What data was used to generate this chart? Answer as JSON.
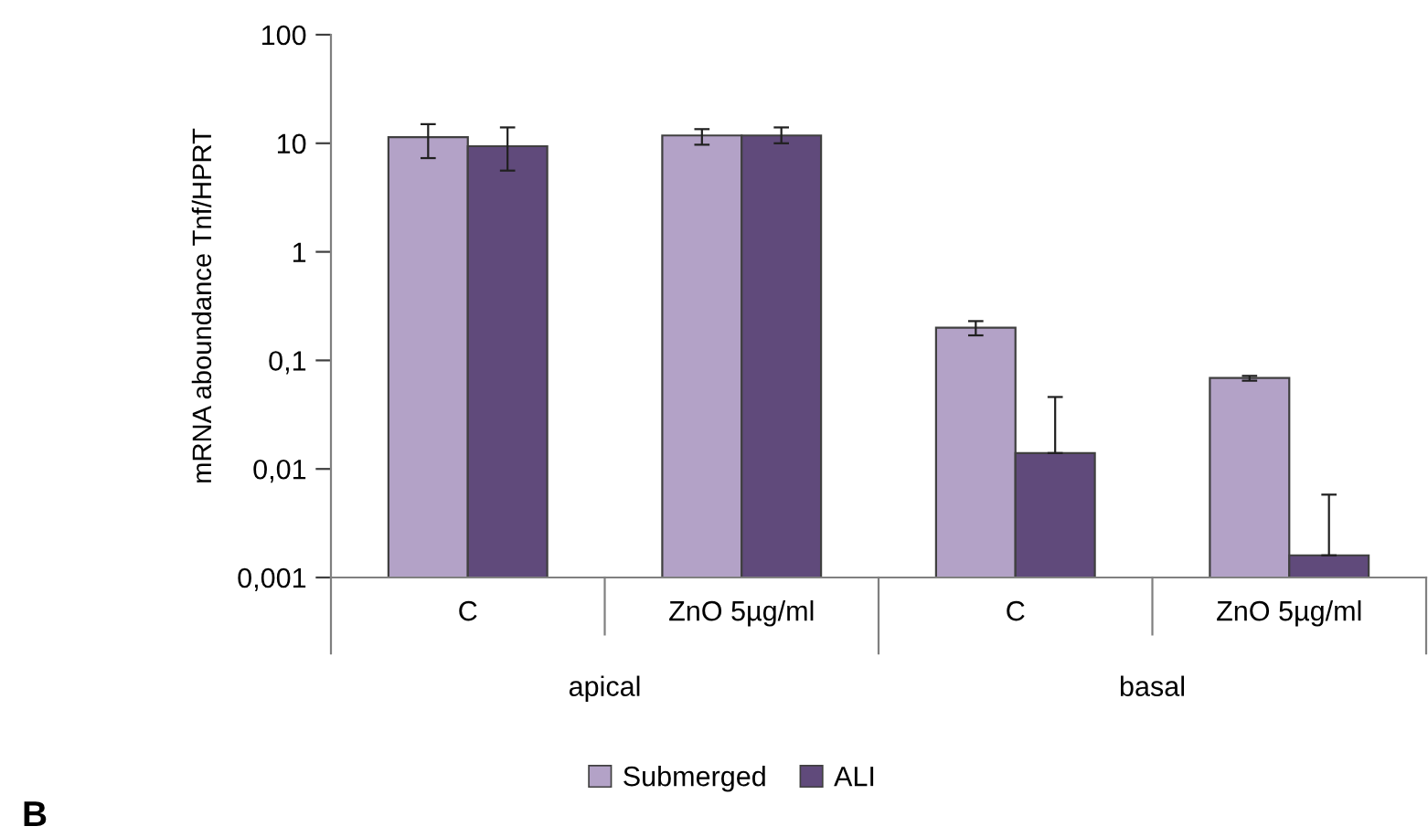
{
  "chart_data": {
    "type": "bar",
    "ylabel": "mRNA aboundance Tnf/HPRT",
    "categories": [
      "C",
      "ZnO 5µg/ml",
      "C",
      "ZnO 5µg/ml"
    ],
    "series": [
      {
        "name": "Submerged",
        "color": "#b3a2c7",
        "values": [
          11.4,
          11.8,
          0.2,
          0.069
        ],
        "errors": [
          [
            7.3,
            15
          ],
          [
            9.7,
            13.5
          ],
          [
            0.17,
            0.23
          ],
          [
            0.065,
            0.072
          ]
        ]
      },
      {
        "name": "ALI",
        "color": "#604a7b",
        "values": [
          9.4,
          11.8,
          0.014,
          0.0016
        ],
        "errors": [
          [
            5.6,
            14
          ],
          [
            10,
            14
          ],
          [
            0.014,
            0.046
          ],
          [
            0.0016,
            0.0058
          ]
        ]
      }
    ],
    "log": "y",
    "ylim": [
      0.001,
      100
    ],
    "yticks": [
      {
        "value": 0.001,
        "label": "0,001"
      },
      {
        "value": 0.01,
        "label": "0,01"
      },
      {
        "value": 0.1,
        "label": "0,1"
      },
      {
        "value": 1,
        "label": "1"
      },
      {
        "value": 10,
        "label": "10"
      },
      {
        "value": 100,
        "label": "100"
      }
    ],
    "grid": false,
    "legend": "bottom",
    "annotations": [
      "apical",
      "basal",
      "B"
    ]
  }
}
